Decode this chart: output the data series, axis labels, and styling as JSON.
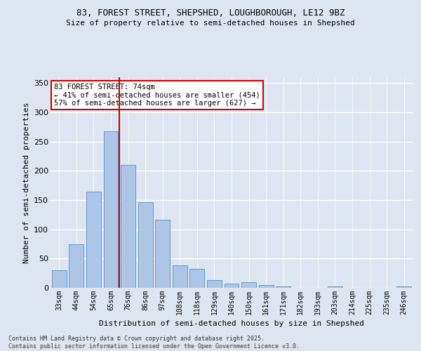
{
  "title_line1": "83, FOREST STREET, SHEPSHED, LOUGHBOROUGH, LE12 9BZ",
  "title_line2": "Size of property relative to semi-detached houses in Shepshed",
  "xlabel": "Distribution of semi-detached houses by size in Shepshed",
  "ylabel": "Number of semi-detached properties",
  "categories": [
    "33sqm",
    "44sqm",
    "54sqm",
    "65sqm",
    "76sqm",
    "86sqm",
    "97sqm",
    "108sqm",
    "118sqm",
    "129sqm",
    "140sqm",
    "150sqm",
    "161sqm",
    "171sqm",
    "182sqm",
    "193sqm",
    "203sqm",
    "214sqm",
    "225sqm",
    "235sqm",
    "246sqm"
  ],
  "values": [
    30,
    75,
    165,
    268,
    210,
    147,
    116,
    39,
    32,
    13,
    7,
    10,
    5,
    3,
    0,
    0,
    2,
    0,
    0,
    0,
    2
  ],
  "bar_color": "#adc6e8",
  "bar_edge_color": "#5b9bd5",
  "vline_color": "#cc0000",
  "vline_pos": 3.5,
  "annotation_title": "83 FOREST STREET: 74sqm",
  "annotation_line2": "← 41% of semi-detached houses are smaller (454)",
  "annotation_line3": "57% of semi-detached houses are larger (627) →",
  "annotation_box_color": "#ffffff",
  "annotation_box_edge": "#cc0000",
  "ylim": [
    0,
    360
  ],
  "yticks": [
    0,
    50,
    100,
    150,
    200,
    250,
    300,
    350
  ],
  "fig_bg_color": "#dde6f0",
  "plot_bg_color": "#dde6f0",
  "grid_color": "#ffffff",
  "footer_line1": "Contains HM Land Registry data © Crown copyright and database right 2025.",
  "footer_line2": "Contains public sector information licensed under the Open Government Licence v3.0."
}
